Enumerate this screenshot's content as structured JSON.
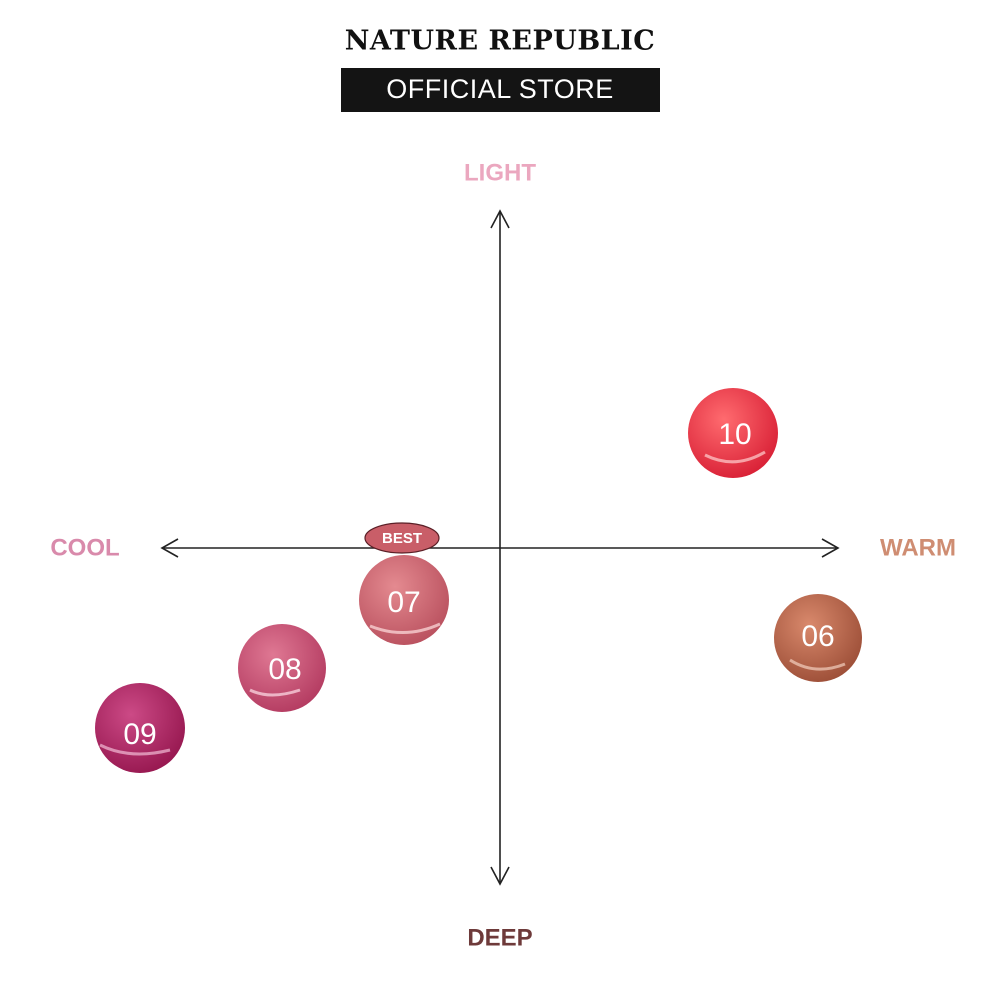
{
  "header": {
    "brand": "NATURE REPUBLIC",
    "badge": "OFFICIAL STORE"
  },
  "axes": {
    "top": "LIGHT",
    "bottom": "DEEP",
    "left": "COOL",
    "right": "WARM"
  },
  "swatches": [
    {
      "label": "10"
    },
    {
      "label": "07",
      "tag": "BEST"
    },
    {
      "label": "08"
    },
    {
      "label": "09"
    },
    {
      "label": "06"
    }
  ]
}
